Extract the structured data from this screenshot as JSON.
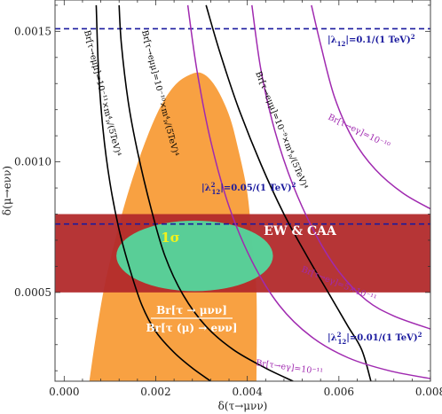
{
  "chart_data": {
    "type": "region-plot",
    "xlabel": "δ(τ→μνν)",
    "ylabel": "δ(μ→eνν)",
    "xlim": [
      -0.0002,
      0.008
    ],
    "ylim": [
      0.00016,
      0.00162
    ],
    "x_ticks": [
      {
        "value": 0.0,
        "label": "0.000"
      },
      {
        "value": 0.002,
        "label": "0.002"
      },
      {
        "value": 0.004,
        "label": "0.004"
      },
      {
        "value": 0.006,
        "label": "0.006"
      },
      {
        "value": 0.008,
        "label": "0.008"
      }
    ],
    "y_ticks": [
      {
        "value": 0.0005,
        "label": "0.0005"
      },
      {
        "value": 0.001,
        "label": "0.0010"
      },
      {
        "value": 0.0015,
        "label": "0.0015"
      }
    ],
    "orange_region": {
      "label_numerator": "Br[τ → μνν]",
      "label_denominator": "Br[τ (μ) → eνν]",
      "color": "#f8a142",
      "upper_boundary": [
        [
          0.00055,
          0.00016
        ],
        [
          0.0007,
          0.00034
        ],
        [
          0.0009,
          0.00054
        ],
        [
          0.0012,
          0.00076
        ],
        [
          0.0015,
          0.00094
        ],
        [
          0.0018,
          0.00109
        ],
        [
          0.0021,
          0.00121
        ],
        [
          0.0024,
          0.00129
        ],
        [
          0.0027,
          0.00133
        ],
        [
          0.003,
          0.00134
        ],
        [
          0.0033,
          0.00129
        ],
        [
          0.0036,
          0.00118
        ],
        [
          0.0038,
          0.00105
        ],
        [
          0.004,
          0.00088
        ],
        [
          0.0041,
          0.0007
        ],
        [
          0.0042,
          0.0005
        ],
        [
          0.0042,
          0.00016
        ]
      ]
    },
    "ew_caa_band": {
      "label": "EW & CAA",
      "color": "#b22a2b",
      "y_range": [
        0.0005,
        0.0008
      ],
      "x_range": [
        -0.0002,
        0.008
      ]
    },
    "ellipse": {
      "label": "1σ",
      "color": "#4fe0a3",
      "center": [
        0.00285,
        0.00064
      ],
      "semi_axes": [
        0.00171,
        0.000135
      ]
    },
    "dashed_lines": [
      {
        "label_prefix": "|λ",
        "sub": "12",
        "sup": "",
        "label_suffix": "|=0.1/(1 TeV)",
        "exp": "2",
        "y": 0.00151,
        "color": "#1a1a9e"
      },
      {
        "label_prefix": "|λ",
        "sub": "12",
        "sup": "2",
        "label_suffix": "|=0.05/(1 TeV)",
        "exp": "2",
        "y": 0.000762,
        "color": "#1a1a9e"
      },
      {
        "label_prefix": "|λ",
        "sub": "12",
        "sup": "2",
        "label_suffix": "|=0.01/(1 TeV)",
        "exp": "2",
        "y": 0.000153,
        "color": "#1a1a9e"
      }
    ],
    "black_curves": [
      {
        "label": "Br[τ→eμμ]=10⁻¹¹×m⁴ₚ/(5TeV)⁴",
        "points": [
          [
            0.0007,
            0.0016
          ],
          [
            0.00075,
            0.00135
          ],
          [
            0.00085,
            0.00112
          ],
          [
            0.001,
            0.00092
          ],
          [
            0.0012,
            0.00074
          ],
          [
            0.00145,
            0.00058
          ],
          [
            0.0017,
            0.00045
          ],
          [
            0.002,
            0.00035
          ],
          [
            0.0024,
            0.00027
          ],
          [
            0.0028,
            0.00021
          ],
          [
            0.0032,
            0.00016
          ]
        ]
      },
      {
        "label": "Br[τ→eμμ]=10⁻¹⁰×m⁴ₚ/(5TeV)⁴",
        "points": [
          [
            0.0012,
            0.0016
          ],
          [
            0.00125,
            0.00145
          ],
          [
            0.0014,
            0.00123
          ],
          [
            0.0016,
            0.00104
          ],
          [
            0.0019,
            0.00082
          ],
          [
            0.0022,
            0.00064
          ],
          [
            0.0026,
            0.00049
          ],
          [
            0.0031,
            0.00037
          ],
          [
            0.0037,
            0.00028
          ],
          [
            0.0044,
            0.00021
          ],
          [
            0.005,
            0.00016
          ]
        ]
      },
      {
        "label": "Br[τ→eμμ]=10⁻⁹×m⁴ₚ/(5TeV)⁴",
        "points": [
          [
            0.0031,
            0.0016
          ],
          [
            0.0034,
            0.00142
          ],
          [
            0.0038,
            0.00121
          ],
          [
            0.0043,
            0.00099
          ],
          [
            0.0048,
            0.0008
          ],
          [
            0.0053,
            0.00064
          ],
          [
            0.0058,
            0.00049
          ],
          [
            0.0062,
            0.00037
          ],
          [
            0.0065,
            0.00028
          ],
          [
            0.0067,
            0.00016
          ]
        ]
      }
    ],
    "purple_curves": [
      {
        "label": "Br[τ→eγ]=10⁻¹⁰",
        "points": [
          [
            0.0054,
            0.0016
          ],
          [
            0.0056,
            0.00145
          ],
          [
            0.0059,
            0.00125
          ],
          [
            0.0063,
            0.00109
          ],
          [
            0.0068,
            0.00097
          ],
          [
            0.0074,
            0.00088
          ],
          [
            0.008,
            0.00082
          ]
        ]
      },
      {
        "label": "Br[τ→eγ]=5×10⁻¹¹",
        "points": [
          [
            0.0041,
            0.0016
          ],
          [
            0.0043,
            0.00135
          ],
          [
            0.0046,
            0.00112
          ],
          [
            0.005,
            0.00091
          ],
          [
            0.0055,
            0.00072
          ],
          [
            0.006,
            0.00058
          ],
          [
            0.0066,
            0.00047
          ],
          [
            0.0072,
            0.00041
          ],
          [
            0.008,
            0.00036
          ]
        ]
      },
      {
        "label": "Br[τ→eγ]=10⁻¹¹",
        "points": [
          [
            0.0027,
            0.0016
          ],
          [
            0.0029,
            0.00135
          ],
          [
            0.0032,
            0.00108
          ],
          [
            0.0036,
            0.00083
          ],
          [
            0.0041,
            0.00062
          ],
          [
            0.0047,
            0.00045
          ],
          [
            0.0054,
            0.00033
          ],
          [
            0.0062,
            0.00025
          ],
          [
            0.0071,
            0.0002
          ],
          [
            0.008,
            0.00017
          ]
        ]
      }
    ]
  }
}
